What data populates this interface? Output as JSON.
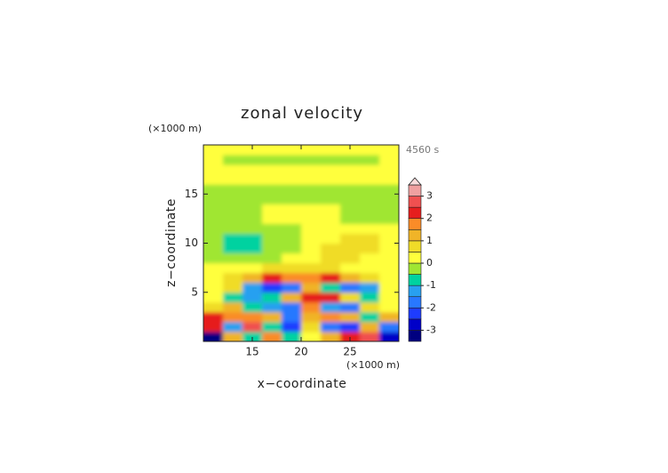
{
  "chart_data": {
    "type": "contour",
    "title": "zonal velocity",
    "x_label": "x−coordinate",
    "y_label": "z−coordinate",
    "x_unit": "(×1000 m)",
    "y_unit": "(×1000 m)",
    "time_label": "4560 s",
    "xlim": [
      10,
      30
    ],
    "ylim": [
      0,
      20
    ],
    "xticks": [
      15,
      20,
      25
    ],
    "yticks": [
      5,
      10,
      15
    ],
    "x": [
      11,
      13,
      15,
      17,
      19,
      21,
      23,
      25,
      27,
      29
    ],
    "y": [
      0.5,
      1.5,
      2.5,
      3.5,
      4.5,
      5.5,
      6.5,
      7.5,
      8.5,
      9.5,
      10.5,
      11.5,
      12.5,
      13.5,
      14.5,
      15.5,
      16.5,
      17.5,
      18.5,
      19.5
    ],
    "values": [
      [
        -3.2,
        1.2,
        -0.8,
        1.6,
        -0.6,
        0.2,
        1.3,
        2.2,
        2.6,
        -3.0
      ],
      [
        2.3,
        -1.2,
        2.8,
        -0.8,
        -2.2,
        0.6,
        -1.6,
        -2.4,
        1.2,
        -1.8
      ],
      [
        2.2,
        1.6,
        1.9,
        1.2,
        -1.6,
        1.3,
        1.8,
        1.4,
        -0.8,
        1.2
      ],
      [
        0.8,
        1.2,
        -0.6,
        -1.4,
        -2.0,
        1.9,
        -1.2,
        -1.8,
        0.6,
        0.3
      ],
      [
        0.3,
        -0.8,
        -1.3,
        -0.6,
        1.2,
        2.2,
        2.4,
        0.8,
        -0.6,
        0.2
      ],
      [
        0.2,
        0.6,
        -1.2,
        -2.4,
        -1.8,
        1.4,
        -0.8,
        -1.8,
        -1.2,
        0.2
      ],
      [
        0.2,
        0.6,
        1.2,
        2.2,
        1.8,
        1.6,
        2.0,
        1.2,
        0.7,
        0.2
      ],
      [
        0.2,
        0.2,
        0.3,
        0.8,
        0.7,
        0.8,
        0.6,
        0.3,
        0.2,
        0.2
      ],
      [
        -0.2,
        -0.2,
        -0.3,
        -0.2,
        0.2,
        0.3,
        0.6,
        0.6,
        0.3,
        0.2
      ],
      [
        -0.3,
        -0.7,
        -0.7,
        -0.4,
        -0.2,
        0.4,
        0.7,
        0.7,
        0.6,
        0.2
      ],
      [
        -0.2,
        -0.7,
        -0.6,
        -0.3,
        -0.1,
        0.2,
        0.4,
        0.7,
        0.6,
        0.2
      ],
      [
        -0.2,
        -0.3,
        -0.2,
        -0.2,
        -0.2,
        0.2,
        0.3,
        0.2,
        0.2,
        0.2
      ],
      [
        -0.2,
        -0.2,
        -0.2,
        0.2,
        0.2,
        0.2,
        0.2,
        -0.2,
        -0.2,
        -0.2
      ],
      [
        -0.2,
        -0.2,
        -0.2,
        0.2,
        0.3,
        0.3,
        0.2,
        -0.2,
        -0.2,
        -0.2
      ],
      [
        -0.2,
        -0.2,
        -0.2,
        -0.2,
        -0.2,
        -0.2,
        -0.2,
        -0.2,
        -0.2,
        -0.2
      ],
      [
        -0.2,
        -0.2,
        -0.2,
        -0.2,
        -0.2,
        -0.2,
        -0.2,
        -0.2,
        -0.2,
        -0.2
      ],
      [
        0.2,
        0.2,
        0.2,
        0.2,
        0.2,
        0.2,
        0.2,
        0.2,
        0.2,
        0.2
      ],
      [
        0.2,
        0.2,
        0.2,
        0.2,
        0.2,
        0.2,
        0.2,
        0.2,
        0.2,
        0.2
      ],
      [
        0.2,
        -0.2,
        -0.2,
        -0.2,
        -0.2,
        -0.2,
        -0.2,
        -0.2,
        -0.2,
        0.2
      ],
      [
        0.2,
        0.2,
        0.2,
        0.2,
        0.2,
        0.2,
        0.2,
        0.2,
        0.2,
        0.2
      ]
    ],
    "colorbar": {
      "levels": [
        -3.5,
        -3,
        -2.5,
        -2,
        -1.5,
        -1,
        -0.5,
        0,
        0.5,
        1,
        1.5,
        2,
        2.5,
        3,
        3.5
      ],
      "colors": [
        "#000080",
        "#0000c8",
        "#1e3cff",
        "#2878ff",
        "#28a0f0",
        "#00d2a0",
        "#a0e632",
        "#ffff3c",
        "#f0dc28",
        "#f0b428",
        "#fa8c28",
        "#e61e1e",
        "#f05050",
        "#f0a0a0"
      ],
      "extend_color": "#fadcdc",
      "ticks": [
        -3,
        -2,
        -1,
        0,
        1,
        2,
        3
      ]
    }
  }
}
